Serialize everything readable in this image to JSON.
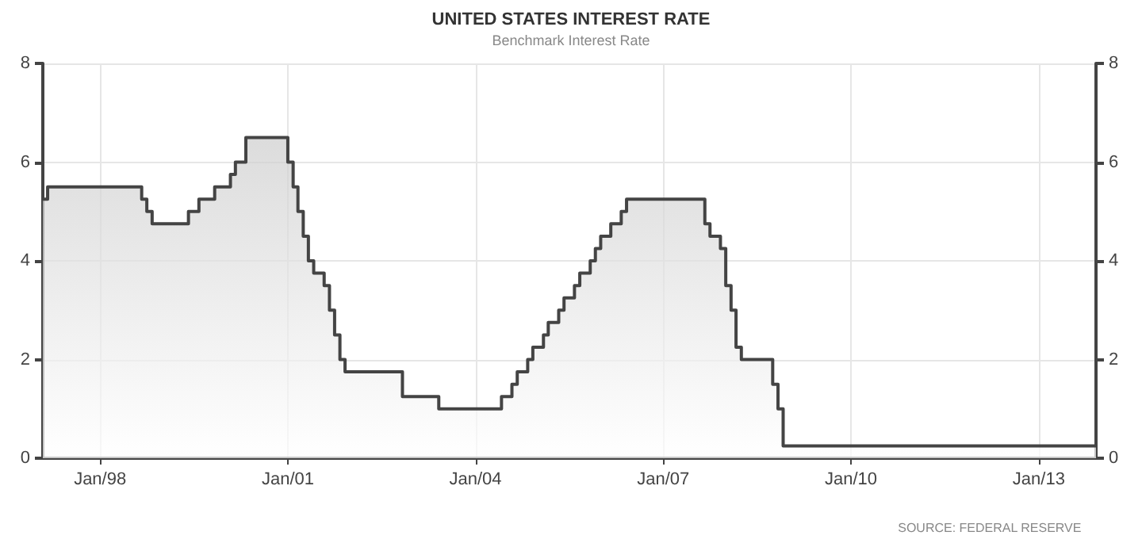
{
  "chart_data": {
    "type": "area",
    "title": "UNITED STATES INTEREST RATE",
    "subtitle": "Benchmark Interest Rate",
    "annotations": [
      "SOURCE: FEDERAL RESERVE"
    ],
    "x": [
      "1997-02",
      "1997-03",
      "1997-03",
      "1998-09",
      "1998-09",
      "1998-10",
      "1998-10",
      "1998-11",
      "1998-11",
      "1999-06",
      "1999-06",
      "1999-08",
      "1999-08",
      "1999-11",
      "1999-11",
      "2000-02",
      "2000-02",
      "2000-03",
      "2000-03",
      "2000-05",
      "2000-05",
      "2001-01",
      "2001-01",
      "2001-02",
      "2001-02",
      "2001-03",
      "2001-03",
      "2001-04",
      "2001-04",
      "2001-05",
      "2001-05",
      "2001-06",
      "2001-06",
      "2001-08",
      "2001-08",
      "2001-09",
      "2001-09",
      "2001-10",
      "2001-10",
      "2001-11",
      "2001-11",
      "2001-12",
      "2001-12",
      "2002-11",
      "2002-11",
      "2003-06",
      "2003-06",
      "2004-06",
      "2004-06",
      "2004-08",
      "2004-08",
      "2004-09",
      "2004-09",
      "2004-11",
      "2004-11",
      "2004-12",
      "2004-12",
      "2005-02",
      "2005-02",
      "2005-03",
      "2005-03",
      "2005-05",
      "2005-05",
      "2005-06",
      "2005-06",
      "2005-08",
      "2005-08",
      "2005-09",
      "2005-09",
      "2005-11",
      "2005-11",
      "2005-12",
      "2005-12",
      "2006-01",
      "2006-01",
      "2006-03",
      "2006-03",
      "2006-05",
      "2006-05",
      "2006-06",
      "2006-06",
      "2007-09",
      "2007-09",
      "2007-10",
      "2007-10",
      "2007-12",
      "2007-12",
      "2008-01",
      "2008-01",
      "2008-02",
      "2008-02",
      "2008-03",
      "2008-03",
      "2008-04",
      "2008-04",
      "2008-10",
      "2008-10",
      "2008-11",
      "2008-11",
      "2008-12",
      "2008-12",
      "2013-12"
    ],
    "series": [
      {
        "color": "#444444",
        "values": [
          5.25,
          5.25,
          5.5,
          5.5,
          5.25,
          5.25,
          5.0,
          5.0,
          4.75,
          4.75,
          5.0,
          5.0,
          5.25,
          5.25,
          5.5,
          5.5,
          5.75,
          5.75,
          6.0,
          6.0,
          6.5,
          6.5,
          6.0,
          6.0,
          5.5,
          5.5,
          5.0,
          5.0,
          4.5,
          4.5,
          4.0,
          4.0,
          3.75,
          3.75,
          3.5,
          3.5,
          3.0,
          3.0,
          2.5,
          2.5,
          2.0,
          2.0,
          1.75,
          1.75,
          1.25,
          1.25,
          1.0,
          1.0,
          1.25,
          1.25,
          1.5,
          1.5,
          1.75,
          1.75,
          2.0,
          2.0,
          2.25,
          2.25,
          2.5,
          2.5,
          2.75,
          2.75,
          3.0,
          3.0,
          3.25,
          3.25,
          3.5,
          3.5,
          3.75,
          3.75,
          4.0,
          4.0,
          4.25,
          4.25,
          4.5,
          4.5,
          4.75,
          4.75,
          5.0,
          5.0,
          5.25,
          5.25,
          4.75,
          4.75,
          4.5,
          4.5,
          4.25,
          4.25,
          3.5,
          3.5,
          3.0,
          3.0,
          2.25,
          2.25,
          2.0,
          2.0,
          1.5,
          1.5,
          1.0,
          1.0,
          0.25,
          0.25
        ]
      }
    ],
    "xlim": [
      "1997-02",
      "2013-12"
    ],
    "xticks": [
      {
        "value": "1998-01",
        "label": "Jan/98"
      },
      {
        "value": "2001-01",
        "label": "Jan/01"
      },
      {
        "value": "2004-01",
        "label": "Jan/04"
      },
      {
        "value": "2007-01",
        "label": "Jan/07"
      },
      {
        "value": "2010-01",
        "label": "Jan/10"
      },
      {
        "value": "2013-01",
        "label": "Jan/13"
      }
    ],
    "ylim": [
      0,
      8
    ],
    "yticks": [
      0,
      2,
      4,
      6,
      8
    ],
    "y2lim": [
      0,
      8
    ],
    "y2ticks": [
      0,
      2,
      4,
      6,
      8
    ],
    "grid": true
  }
}
